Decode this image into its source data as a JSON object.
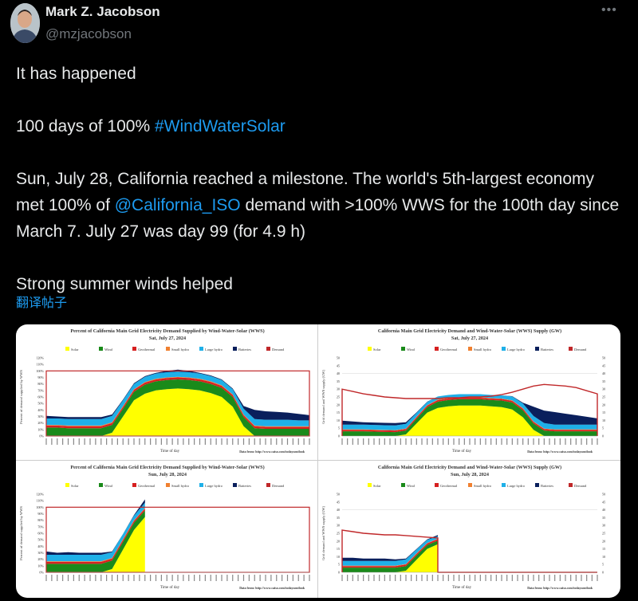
{
  "author": {
    "name": "Mark Z. Jacobson",
    "handle": "@mzjacobson",
    "more_icon": "more-horizontal-icon"
  },
  "tweet": {
    "line1": "It has happened",
    "line2_prefix": "100 days of 100% ",
    "line2_hashtag": "#WindWaterSolar",
    "para3_a": "Sun, July 28, California reached a milestone. The world's 5th-largest economy met 100% of ",
    "para3_mention": "@California_ISO",
    "para3_b": " demand with >100% WWS for the 100th day since March 7. July 27 was day 99 (for 4.9 h)",
    "line4": "Strong summer winds helped",
    "translate": "翻译帖子"
  },
  "colors": {
    "link": "#1d9bf0",
    "solar": "#ffff00",
    "wind": "#1a8a1a",
    "geothermal": "#d62020",
    "small_hydro": "#f08030",
    "large_hydro": "#1fb0e8",
    "batteries": "#0a1f5c",
    "demand": "#c0282a"
  },
  "legend": [
    "Solar",
    "Wind",
    "Geothermal",
    "Small hydro",
    "Large hydro",
    "Batteries",
    "Demand"
  ],
  "chart_data": [
    {
      "type": "area",
      "stacked": true,
      "unit": "percent",
      "title": "Percent of California Main Grid Electricity Demand Supplied by Wind-Water-Solar (WWS)",
      "subtitle": "Sat, July 27, 2024",
      "xlabel": "Time of day",
      "ylabel": "Percent of demand supplied by WWS",
      "ylim": [
        0,
        120
      ],
      "yticks": [
        "0%",
        "10%",
        "20%",
        "30%",
        "40%",
        "50%",
        "60%",
        "70%",
        "80%",
        "90%",
        "100%",
        "110%",
        "120%"
      ],
      "x_hours": [
        0,
        1,
        2,
        3,
        4,
        5,
        6,
        7,
        8,
        9,
        10,
        11,
        12,
        13,
        14,
        15,
        16,
        17,
        18,
        19,
        20,
        21,
        22,
        23,
        24
      ],
      "series": {
        "solar": [
          0,
          0,
          0,
          0,
          0,
          0,
          5,
          30,
          55,
          65,
          70,
          72,
          73,
          72,
          70,
          66,
          60,
          45,
          15,
          0,
          0,
          0,
          0,
          0,
          0
        ],
        "wind": [
          13,
          13,
          12,
          12,
          12,
          12,
          12,
          12,
          13,
          14,
          14,
          14,
          14,
          14,
          14,
          14,
          14,
          15,
          14,
          12,
          11,
          11,
          11,
          11,
          11
        ],
        "geothermal": [
          3,
          3,
          3,
          3,
          3,
          3,
          3,
          3,
          3,
          3,
          3,
          3,
          3,
          3,
          3,
          3,
          3,
          3,
          3,
          3,
          3,
          3,
          3,
          3,
          3
        ],
        "small_hydro": [
          1,
          1,
          1,
          1,
          1,
          1,
          1,
          1,
          1,
          1,
          1,
          1,
          1,
          1,
          1,
          1,
          1,
          1,
          1,
          1,
          1,
          1,
          1,
          1,
          1
        ],
        "large_hydro": [
          10,
          10,
          10,
          10,
          10,
          10,
          10,
          9,
          8,
          8,
          8,
          8,
          8,
          8,
          8,
          8,
          8,
          8,
          9,
          10,
          10,
          10,
          10,
          9,
          9
        ],
        "batteries": [
          4,
          3,
          3,
          3,
          3,
          3,
          2,
          1,
          1,
          1,
          1,
          2,
          3,
          2,
          1,
          1,
          1,
          1,
          4,
          14,
          13,
          12,
          11,
          10,
          8
        ]
      },
      "demand_pct": 100,
      "source": "Data from: http://www.caiso.com/todaysoutlook"
    },
    {
      "type": "area",
      "stacked": true,
      "unit": "GW",
      "title": "California Main Grid Electricity Demand and Wind-Water-Solar (WWS) Supply (GW)",
      "subtitle": "Sat, July 27, 2024",
      "xlabel": "Time of day",
      "ylabel": "Grid demand and WWS supply (GW)",
      "ylim": [
        0,
        50
      ],
      "yticks": [
        "0",
        "5",
        "10",
        "15",
        "20",
        "25",
        "30",
        "35",
        "40",
        "45",
        "50"
      ],
      "x_hours": [
        0,
        1,
        2,
        3,
        4,
        5,
        6,
        7,
        8,
        9,
        10,
        11,
        12,
        13,
        14,
        15,
        16,
        17,
        18,
        19,
        20,
        21,
        22,
        23,
        24
      ],
      "series": {
        "solar": [
          0,
          0,
          0,
          0,
          0,
          0,
          1,
          8,
          15,
          18,
          19,
          19.5,
          19.5,
          19.5,
          19,
          18.5,
          17,
          12,
          4,
          0,
          0,
          0,
          0,
          0,
          0
        ],
        "wind": [
          3,
          3,
          3,
          2.8,
          2.6,
          2.5,
          2.5,
          3,
          3.5,
          4,
          4,
          4,
          4,
          4,
          4,
          4.2,
          4.5,
          4.5,
          4,
          3.5,
          3,
          3,
          3,
          3,
          3
        ],
        "geothermal": [
          1,
          1,
          1,
          1,
          1,
          1,
          1,
          1,
          1,
          1,
          1,
          1,
          1,
          1,
          1,
          1,
          1,
          1,
          1,
          1,
          1,
          1,
          1,
          1,
          1
        ],
        "small_hydro": [
          0.3,
          0.3,
          0.3,
          0.3,
          0.3,
          0.3,
          0.3,
          0.3,
          0.3,
          0.3,
          0.3,
          0.3,
          0.3,
          0.3,
          0.3,
          0.3,
          0.3,
          0.3,
          0.3,
          0.3,
          0.3,
          0.3,
          0.3,
          0.3,
          0.3
        ],
        "large_hydro": [
          3,
          3,
          3,
          3,
          3,
          3,
          3,
          2.5,
          2,
          2,
          2,
          2,
          2,
          2,
          2,
          2,
          2.5,
          3,
          3.5,
          3.5,
          3,
          3,
          3,
          3,
          3
        ],
        "batteries": [
          2.5,
          2,
          1.5,
          1.5,
          1.5,
          1.5,
          1,
          0.3,
          0.2,
          0,
          0,
          0,
          0,
          0,
          0,
          0,
          0.2,
          0.5,
          6,
          8,
          8,
          7,
          6,
          5,
          4
        ]
      },
      "demand": [
        30,
        28.5,
        27,
        26,
        25,
        24.5,
        24,
        24,
        24,
        24,
        24.5,
        24.5,
        25,
        25,
        25.5,
        26.5,
        28,
        30,
        32,
        33,
        32.5,
        32,
        31,
        29,
        27
      ],
      "source": "Data from: http://www.caiso.com/todaysoutlook"
    },
    {
      "type": "area",
      "stacked": true,
      "unit": "percent",
      "title": "Percent of California Main Grid Electricity Demand Supplied by Wind-Water-Solar (WWS)",
      "subtitle": "Sun, July 28, 2024",
      "xlabel": "Time of day",
      "ylabel": "Percent of demand supplied by WWS",
      "ylim": [
        0,
        120
      ],
      "yticks": [
        "0%",
        "10%",
        "20%",
        "30%",
        "40%",
        "50%",
        "60%",
        "70%",
        "80%",
        "90%",
        "100%",
        "110%",
        "120%"
      ],
      "x_hours": [
        0,
        1,
        2,
        3,
        4,
        5,
        6,
        7,
        8,
        9
      ],
      "x_max": 24,
      "series": {
        "solar": [
          0,
          0,
          0,
          0,
          0,
          0,
          5,
          35,
          65,
          85
        ],
        "wind": [
          13,
          13,
          13,
          13,
          13,
          13,
          13,
          12,
          11,
          10
        ],
        "geothermal": [
          3,
          3,
          3,
          3,
          3,
          3,
          3,
          3,
          3,
          3
        ],
        "small_hydro": [
          1,
          1,
          1,
          1,
          1,
          1,
          1,
          1,
          1,
          1
        ],
        "large_hydro": [
          10,
          10,
          10,
          10,
          10,
          10,
          9,
          8,
          7,
          8
        ],
        "batteries": [
          5,
          3,
          4,
          3,
          3,
          3,
          1,
          0,
          1,
          5
        ]
      },
      "demand_pct": 100,
      "source": "Data from: http://www.caiso.com/todaysoutlook"
    },
    {
      "type": "area",
      "stacked": true,
      "unit": "GW",
      "title": "California Main Grid Electricity Demand and Wind-Water-Solar (WWS) Supply (GW)",
      "subtitle": "Sun, July 28, 2024",
      "xlabel": "Time of day",
      "ylabel": "Grid demand and WWS supply (GW)",
      "ylim": [
        0,
        50
      ],
      "yticks": [
        "0",
        "5",
        "10",
        "15",
        "20",
        "25",
        "30",
        "35",
        "40",
        "45",
        "50"
      ],
      "x_hours": [
        0,
        1,
        2,
        3,
        4,
        5,
        6,
        7,
        8,
        9
      ],
      "x_max": 24,
      "series": {
        "solar": [
          0,
          0,
          0,
          0,
          0,
          0,
          1,
          8,
          15,
          18
        ],
        "wind": [
          3,
          3,
          3,
          3,
          3,
          3,
          3,
          2.8,
          2.5,
          2.3
        ],
        "geothermal": [
          1,
          1,
          1,
          1,
          1,
          1,
          1,
          1,
          1,
          1
        ],
        "small_hydro": [
          0.3,
          0.3,
          0.3,
          0.3,
          0.3,
          0.3,
          0.3,
          0.3,
          0.3,
          0.3
        ],
        "large_hydro": [
          3,
          3,
          3,
          3,
          3,
          3,
          3,
          2.5,
          2,
          1.5
        ],
        "batteries": [
          2,
          2,
          1.5,
          1.5,
          1.5,
          1,
          0.5,
          0.3,
          0.3,
          0.8
        ]
      },
      "demand": [
        27,
        26,
        25,
        24.5,
        24,
        24,
        23.5,
        23,
        22.5,
        22
      ],
      "source": "Data from: http://www.caiso.com/todaysoutlook"
    }
  ]
}
